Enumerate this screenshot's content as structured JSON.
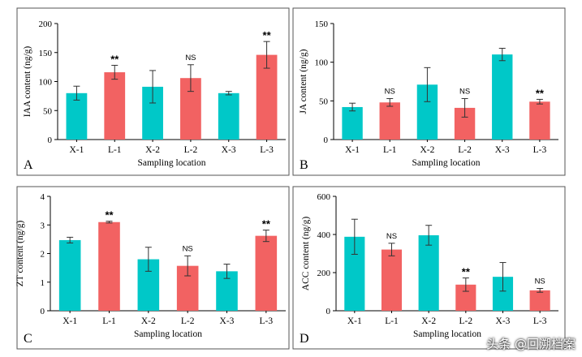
{
  "colors": {
    "X": "#00c8c8",
    "L": "#f26262"
  },
  "chart_data": [
    {
      "panel": "A",
      "type": "bar",
      "ylabel": "IAA content (ng/g)",
      "xlabel": "Sampling location",
      "ylim": [
        0,
        200
      ],
      "yticks": [
        0,
        50,
        100,
        150,
        200
      ],
      "categories": [
        "X-1",
        "L-1",
        "X-2",
        "L-2",
        "X-3",
        "L-3"
      ],
      "values": [
        80,
        116,
        91,
        106,
        80,
        146
      ],
      "errors": [
        12,
        12,
        28,
        23,
        3,
        23
      ],
      "significance": [
        "",
        "**",
        "",
        "NS",
        "",
        "**"
      ]
    },
    {
      "panel": "B",
      "type": "bar",
      "ylabel": "JA content (ng/g)",
      "xlabel": "Sampling location",
      "ylim": [
        0,
        150
      ],
      "yticks": [
        0,
        50,
        100,
        150
      ],
      "categories": [
        "X-1",
        "L-1",
        "X-2",
        "L-2",
        "X-3",
        "L-3"
      ],
      "values": [
        42,
        48,
        71,
        41,
        110,
        49
      ],
      "errors": [
        5,
        5,
        22,
        12,
        8,
        3
      ],
      "significance": [
        "",
        "NS",
        "",
        "NS",
        "",
        "**"
      ]
    },
    {
      "panel": "C",
      "type": "bar",
      "ylabel": "ZT content (ng/g)",
      "xlabel": "Sampling location",
      "ylim": [
        0,
        4
      ],
      "yticks": [
        0,
        1,
        2,
        3,
        4
      ],
      "categories": [
        "X-1",
        "L-1",
        "X-2",
        "L-2",
        "X-3",
        "L-3"
      ],
      "values": [
        2.47,
        3.1,
        1.8,
        1.57,
        1.38,
        2.62
      ],
      "errors": [
        0.1,
        0.03,
        0.42,
        0.35,
        0.25,
        0.2
      ],
      "significance": [
        "",
        "**",
        "",
        "NS",
        "",
        "**"
      ]
    },
    {
      "panel": "D",
      "type": "bar",
      "ylabel": "ACC content (ng/g)",
      "xlabel": "Sampling location",
      "ylim": [
        0,
        600
      ],
      "yticks": [
        0,
        200,
        400,
        600
      ],
      "categories": [
        "X-1",
        "L-1",
        "X-2",
        "L-2",
        "X-3",
        "L-3"
      ],
      "values": [
        388,
        321,
        396,
        137,
        178,
        107
      ],
      "errors": [
        92,
        33,
        52,
        35,
        75,
        10
      ],
      "significance": [
        "",
        "NS",
        "",
        "**",
        "",
        "NS"
      ]
    }
  ],
  "watermark": {
    "text": "头条 @回溯档案"
  }
}
